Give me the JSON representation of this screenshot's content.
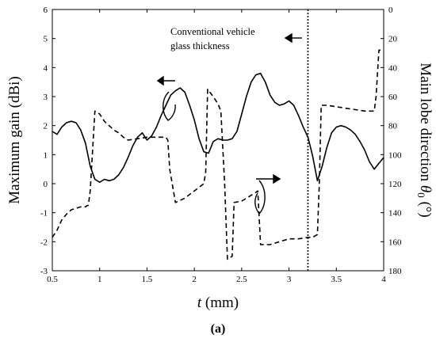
{
  "chart_data": {
    "type": "line",
    "xlabel_var": "t",
    "xlabel_unit": "(mm)",
    "ylabel_left": "Maximum gain (dBi)",
    "ylabel_right_text": "Main lobe direction ",
    "ylabel_right_theta": "θ",
    "ylabel_right_sub": "0",
    "ylabel_right_unit": " (°)",
    "caption": "(a)",
    "annotation": {
      "line1": "Conventional vehicle",
      "line2": "glass thickness",
      "x": 3.2
    },
    "xlim": [
      0.5,
      4
    ],
    "ylim_left": [
      -3,
      6
    ],
    "ylim_right": [
      0,
      180
    ],
    "right_axis_inverted": true,
    "x_ticks": [
      "0.5",
      "1",
      "1.5",
      "2",
      "2.5",
      "3",
      "3.5",
      "4"
    ],
    "y_ticks_left": [
      "-3",
      "-2",
      "-1",
      "0",
      "1",
      "2",
      "3",
      "4",
      "5",
      "6"
    ],
    "y_ticks_right": [
      "0",
      "20",
      "40",
      "60",
      "80",
      "100",
      "120",
      "140",
      "160",
      "180"
    ],
    "series": [
      {
        "axis": "left",
        "style": "solid",
        "x": [
          0.5,
          0.55,
          0.6,
          0.65,
          0.7,
          0.75,
          0.8,
          0.85,
          0.9,
          0.95,
          1.0,
          1.05,
          1.1,
          1.15,
          1.2,
          1.25,
          1.3,
          1.35,
          1.4,
          1.45,
          1.5,
          1.55,
          1.6,
          1.65,
          1.7,
          1.75,
          1.8,
          1.85,
          1.9,
          1.95,
          2.0,
          2.05,
          2.1,
          2.15,
          2.2,
          2.25,
          2.3,
          2.35,
          2.4,
          2.45,
          2.5,
          2.55,
          2.6,
          2.65,
          2.7,
          2.75,
          2.8,
          2.85,
          2.9,
          2.95,
          3.0,
          3.05,
          3.1,
          3.15,
          3.2,
          3.25,
          3.3,
          3.35,
          3.4,
          3.45,
          3.5,
          3.55,
          3.6,
          3.65,
          3.7,
          3.75,
          3.8,
          3.85,
          3.9,
          3.95,
          4.0
        ],
        "y": [
          1.8,
          1.7,
          1.95,
          2.1,
          2.15,
          2.1,
          1.85,
          1.4,
          0.6,
          0.15,
          0.05,
          0.15,
          0.1,
          0.15,
          0.3,
          0.55,
          0.9,
          1.3,
          1.6,
          1.75,
          1.5,
          1.65,
          1.95,
          2.35,
          2.7,
          3.05,
          3.2,
          3.3,
          3.15,
          2.7,
          2.2,
          1.55,
          1.1,
          1.05,
          1.45,
          1.55,
          1.5,
          1.5,
          1.55,
          1.8,
          2.4,
          3.0,
          3.5,
          3.75,
          3.8,
          3.5,
          3.05,
          2.8,
          2.7,
          2.75,
          2.85,
          2.7,
          2.35,
          1.95,
          1.6,
          0.95,
          0.1,
          0.6,
          1.25,
          1.75,
          1.95,
          2.0,
          1.95,
          1.85,
          1.7,
          1.45,
          1.15,
          0.75,
          0.5,
          0.7,
          0.9
        ]
      },
      {
        "axis": "right",
        "style": "dashed",
        "x": [
          0.5,
          0.55,
          0.6,
          0.65,
          0.7,
          0.75,
          0.8,
          0.85,
          0.87,
          0.88,
          0.9,
          0.95,
          1.0,
          1.05,
          1.1,
          1.15,
          1.2,
          1.25,
          1.3,
          1.4,
          1.5,
          1.6,
          1.7,
          1.72,
          1.74,
          1.8,
          1.9,
          2.0,
          2.1,
          2.12,
          2.14,
          2.2,
          2.25,
          2.28,
          2.32,
          2.35,
          2.4,
          2.42,
          2.5,
          2.6,
          2.65,
          2.67,
          2.7,
          2.75,
          2.8,
          2.9,
          3.0,
          3.1,
          3.2,
          3.25,
          3.3,
          3.32,
          3.34,
          3.4,
          3.5,
          3.6,
          3.7,
          3.8,
          3.9,
          3.92,
          3.95,
          4.0
        ],
        "y": [
          157,
          152,
          145,
          141,
          138,
          137,
          136,
          136,
          135,
          135,
          125,
          70,
          72,
          77,
          80,
          83,
          85,
          88,
          90,
          89,
          88,
          88,
          88,
          90,
          110,
          133,
          130,
          125,
          120,
          112,
          55,
          60,
          65,
          70,
          120,
          172,
          170,
          133,
          132,
          128,
          126,
          125,
          162,
          162,
          162,
          160,
          158,
          158,
          157,
          157,
          155,
          120,
          66,
          66,
          67,
          68,
          69,
          70,
          70,
          60,
          28,
          28
        ]
      }
    ]
  }
}
